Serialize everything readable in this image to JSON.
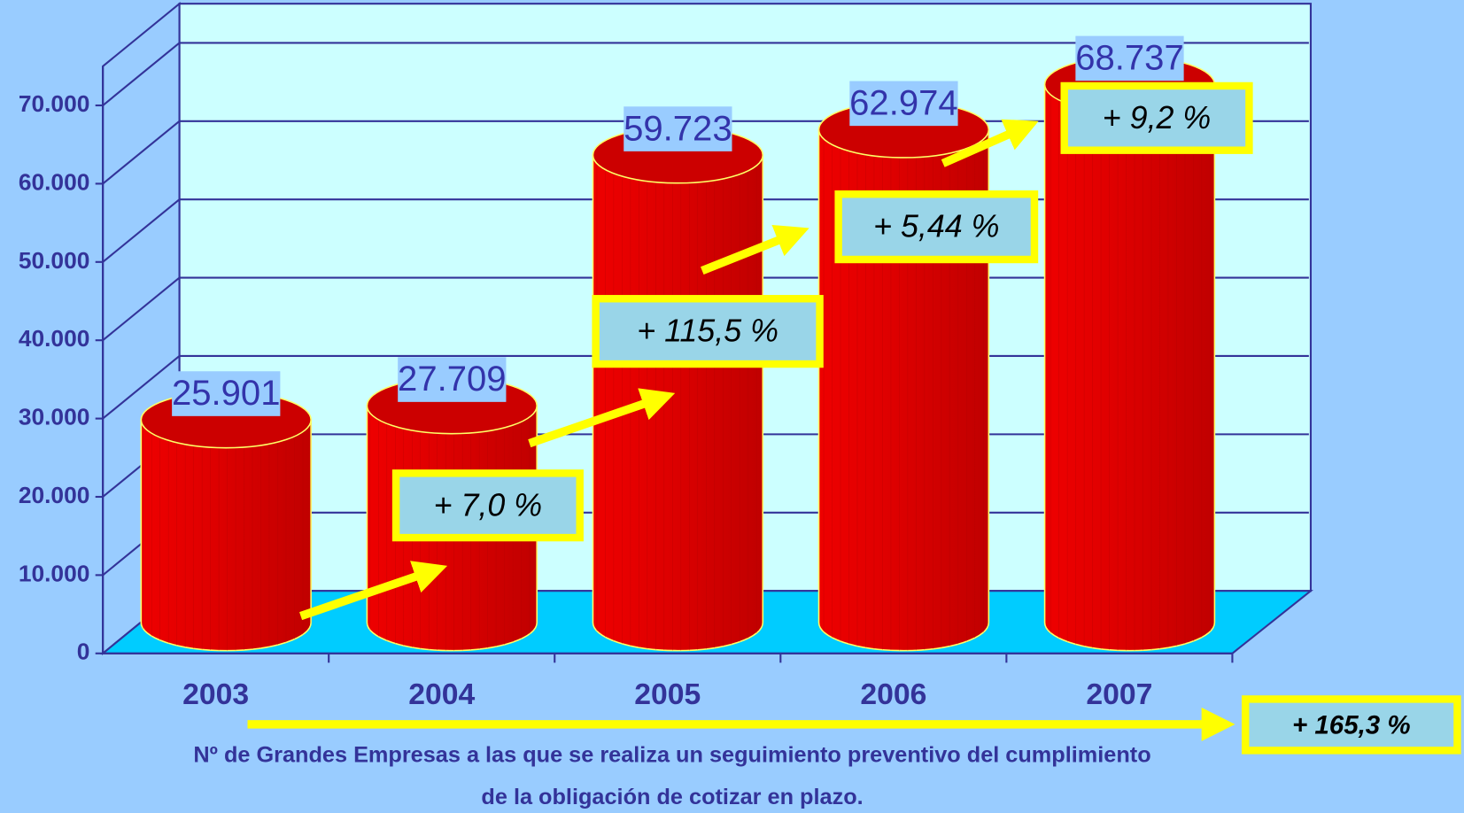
{
  "chart_data": {
    "type": "bar3d",
    "categories": [
      "2003",
      "2004",
      "2005",
      "2006",
      "2007"
    ],
    "values": [
      25901,
      27709,
      59723,
      62974,
      68737
    ],
    "value_labels": [
      "25.901",
      "27.709",
      "59.723",
      "62.974",
      "68.737"
    ],
    "color": "#dd0000",
    "ylim": [
      0,
      75000
    ],
    "yticks": [
      0,
      {
        "value": 10000,
        "label": "10.000"
      },
      {
        "value": 20000,
        "label": "20.000"
      },
      {
        "value": 30000,
        "label": "30.000"
      },
      {
        "value": 40000,
        "label": "40.000"
      },
      {
        "value": 50000,
        "label": "50.000"
      },
      {
        "value": 60000,
        "label": "60.000"
      },
      {
        "value": 70000,
        "label": "70.000"
      }
    ],
    "grid": true,
    "annotations": [
      "+ 7,0 %",
      "+ 115,5 %",
      "+ 5,44 %",
      "+ 9,2 %",
      "+ 165,3 %"
    ],
    "caption": [
      "Nº de Grandes Empresas a las que se realiza un seguimiento preventivo del cumplimiento",
      "de la obligación de cotizar en plazo."
    ]
  }
}
